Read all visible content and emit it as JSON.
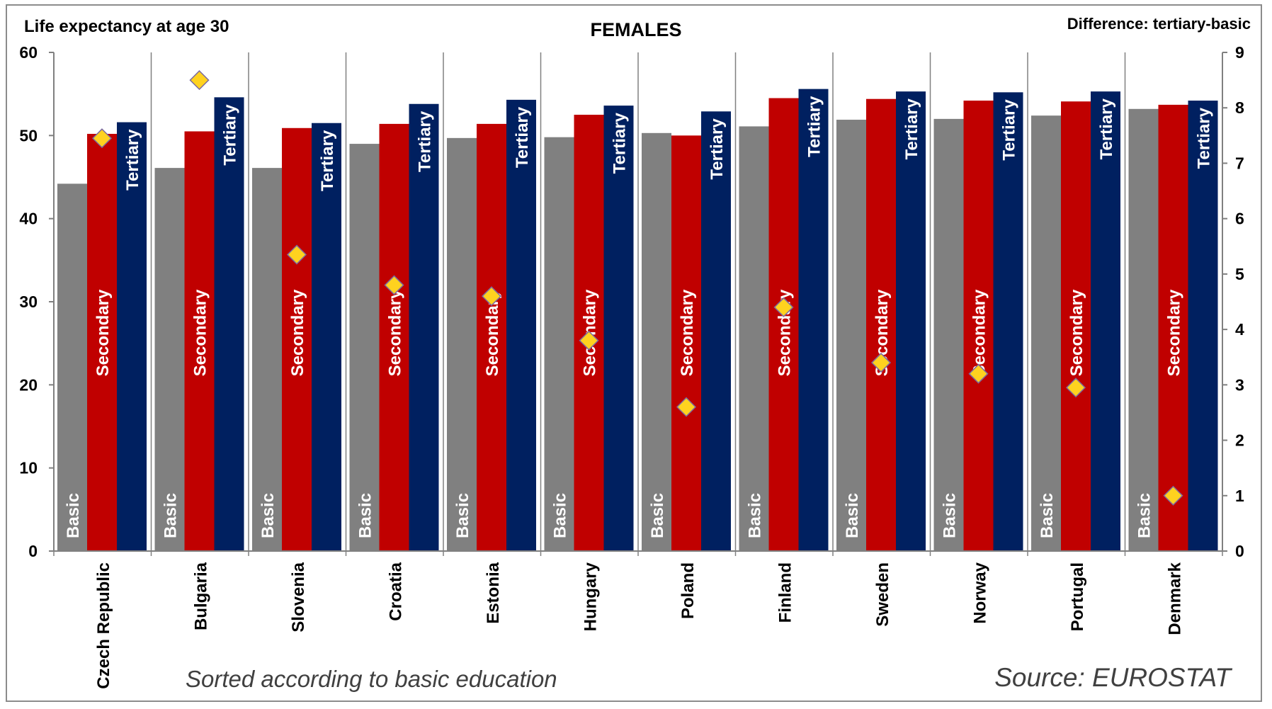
{
  "header": {
    "y_axis_label": "Life expectancy at age 30",
    "title": "FEMALES",
    "y2_axis_label": "Difference: tertiary-basic"
  },
  "footer": {
    "sort_note": "Sorted according to basic education",
    "source": "Source: EUROSTAT"
  },
  "colors": {
    "basic": "#808080",
    "secondary": "#c00000",
    "tertiary": "#002060",
    "marker": "#ffd21f",
    "marker_edge": "#7a6aa0"
  },
  "chart_data": {
    "type": "bar",
    "categories": [
      "Czech Republic",
      "Bulgaria",
      "Slovenia",
      "Croatia",
      "Estonia",
      "Hungary",
      "Poland",
      "Finland",
      "Sweden",
      "Norway",
      "Portugal",
      "Denmark"
    ],
    "series": [
      {
        "name": "Basic",
        "axis": "left",
        "values": [
          44.2,
          46.1,
          46.1,
          49.0,
          49.7,
          49.8,
          50.3,
          51.1,
          51.9,
          52.0,
          52.4,
          53.2
        ]
      },
      {
        "name": "Secondary",
        "axis": "left",
        "values": [
          50.2,
          50.5,
          50.9,
          51.4,
          51.4,
          52.5,
          50.0,
          54.5,
          54.4,
          54.2,
          54.1,
          53.7
        ]
      },
      {
        "name": "Tertiary",
        "axis": "left",
        "values": [
          51.6,
          54.6,
          51.5,
          53.8,
          54.3,
          53.6,
          52.9,
          55.6,
          55.3,
          55.2,
          55.3,
          54.2
        ]
      },
      {
        "name": "Difference: tertiary-basic",
        "axis": "right",
        "type": "scatter",
        "values": [
          7.45,
          8.5,
          5.35,
          4.8,
          4.6,
          3.8,
          2.6,
          4.4,
          3.4,
          3.2,
          2.95,
          1.0
        ]
      }
    ],
    "ylim": [
      0,
      60
    ],
    "yticks": [
      0,
      10,
      20,
      30,
      40,
      50,
      60
    ],
    "y2lim": [
      0,
      9
    ],
    "y2ticks": [
      0,
      1,
      2,
      3,
      4,
      5,
      6,
      7,
      8,
      9
    ],
    "bar_labels": {
      "basic": "Basic",
      "secondary": "Secondary",
      "tertiary": "Tertiary"
    },
    "grid": false,
    "legend": "none"
  }
}
